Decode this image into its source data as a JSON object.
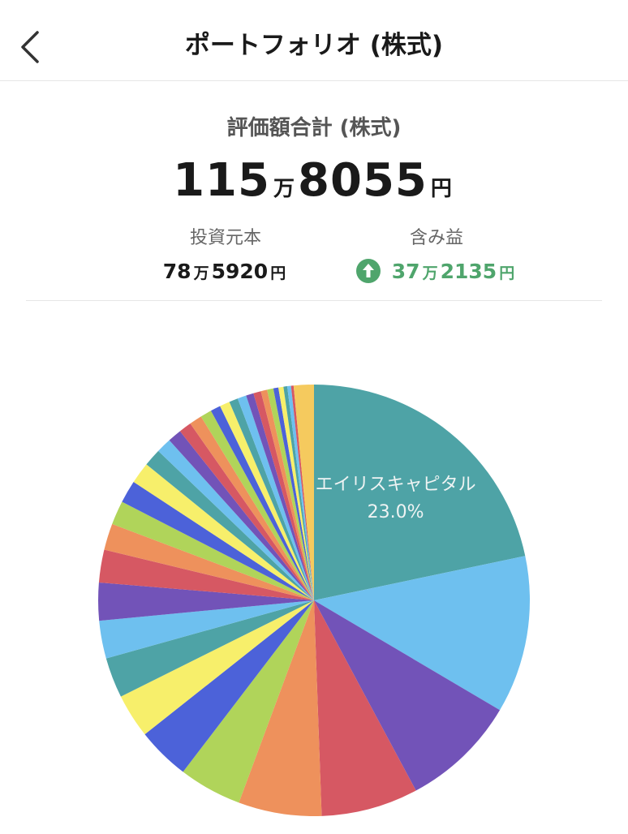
{
  "header": {
    "back_icon": "chevron-left-icon",
    "title": "ポートフォリオ (株式)"
  },
  "summary": {
    "label": "評価額合計 (株式)",
    "total_man": "115",
    "total_man_unit": "万",
    "total_rest": "8055",
    "total_yen_unit": "円",
    "invested": {
      "label": "投資元本",
      "man": "78",
      "man_unit": "万",
      "rest": "5920",
      "yen_unit": "円"
    },
    "unrealized_gain": {
      "label": "含み益",
      "icon": "arrow-up-circle-icon",
      "man": "37",
      "man_unit": "万",
      "rest": "2135",
      "yen_unit": "円",
      "color": "#4fa56c"
    }
  },
  "chart_data": {
    "type": "pie",
    "start": "12 o'clock, clockwise",
    "slices": [
      {
        "label": "エイリスキャピタル",
        "percent": 23.0,
        "display_percent": "23.0%",
        "color": "#4ea3a6"
      },
      {
        "percent": 12.5,
        "color": "#6ec0ef"
      },
      {
        "percent": 9.2,
        "color": "#7253b8"
      },
      {
        "percent": 7.7,
        "color": "#d65863"
      },
      {
        "percent": 6.6,
        "color": "#ee915c"
      },
      {
        "percent": 5.0,
        "color": "#b0d45a"
      },
      {
        "percent": 4.2,
        "color": "#4c62d9"
      },
      {
        "percent": 3.5,
        "color": "#f7ef6b"
      },
      {
        "percent": 3.2,
        "color": "#4ea3a6"
      },
      {
        "percent": 3.0,
        "color": "#6ec0ef"
      },
      {
        "percent": 3.0,
        "color": "#7253b8"
      },
      {
        "percent": 2.6,
        "color": "#d65863"
      },
      {
        "percent": 2.1,
        "color": "#ee915c"
      },
      {
        "percent": 1.9,
        "color": "#b0d45a"
      },
      {
        "percent": 1.8,
        "color": "#4c62d9"
      },
      {
        "percent": 1.7,
        "color": "#f7ef6b"
      },
      {
        "percent": 1.4,
        "color": "#4ea3a6"
      },
      {
        "percent": 1.2,
        "color": "#6ec0ef"
      },
      {
        "percent": 1.1,
        "color": "#7253b8"
      },
      {
        "percent": 1.0,
        "color": "#d65863"
      },
      {
        "percent": 1.0,
        "color": "#ee915c"
      },
      {
        "percent": 0.9,
        "color": "#b0d45a"
      },
      {
        "percent": 0.8,
        "color": "#4c62d9"
      },
      {
        "percent": 0.8,
        "color": "#f7ef6b"
      },
      {
        "percent": 0.7,
        "color": "#4ea3a6"
      },
      {
        "percent": 0.7,
        "color": "#6ec0ef"
      },
      {
        "percent": 0.6,
        "color": "#7253b8"
      },
      {
        "percent": 0.6,
        "color": "#d65863"
      },
      {
        "percent": 0.5,
        "color": "#ee915c"
      },
      {
        "percent": 0.5,
        "color": "#b0d45a"
      },
      {
        "percent": 0.4,
        "color": "#4c62d9"
      },
      {
        "percent": 0.4,
        "color": "#f7ef6b"
      },
      {
        "percent": 0.3,
        "color": "#4ea3a6"
      },
      {
        "percent": 0.3,
        "color": "#6ec0ef"
      },
      {
        "percent": 0.2,
        "color": "#d65863"
      },
      {
        "percent": 1.6,
        "color": "#f5ca5e"
      }
    ]
  }
}
